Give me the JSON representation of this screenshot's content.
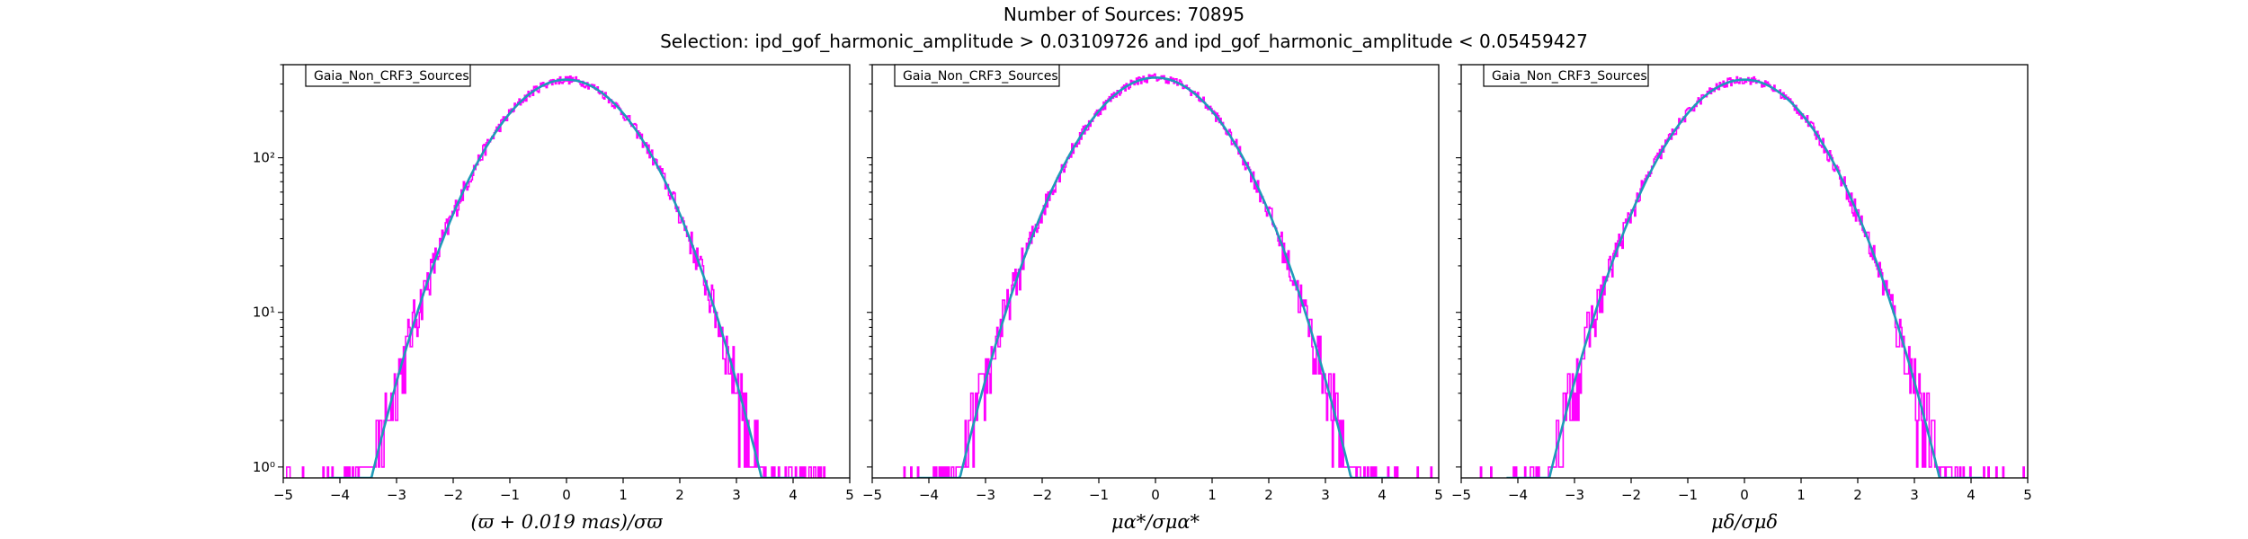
{
  "header": {
    "title": "Number of Sources: 70895",
    "subtitle": "Selection: ipd_gof_harmonic_amplitude > 0.03109726 and ipd_gof_harmonic_amplitude < 0.05459427"
  },
  "colors": {
    "histogram": "#ff00ff",
    "fit": "#1f9bb8"
  },
  "chart_data": [
    {
      "type": "line",
      "legend": "Gaia_Non_CRF3_Sources",
      "legend_placement": "top-left",
      "xlabel": "(ϖ + 0.019 mas)/σϖ",
      "ylabel": "",
      "xlim": [
        -5,
        5
      ],
      "ylim": [
        0.85,
        400
      ],
      "yscale": "log",
      "grid": false,
      "xticks": [
        "−5",
        "−4",
        "−3",
        "−2",
        "−1",
        "0",
        "1",
        "2",
        "3",
        "4",
        "5"
      ],
      "yticks": [
        "10⁰",
        "10¹",
        "10²"
      ],
      "peak": 320,
      "series": [
        {
          "kind": "histogram",
          "x": [
            -4.5,
            -4.0,
            -3.5,
            -3.0,
            -2.5,
            -2.0,
            -1.5,
            -1.0,
            -0.5,
            0.0,
            0.5,
            1.0,
            1.5,
            2.0,
            2.5,
            3.0,
            3.5,
            4.0,
            4.5
          ],
          "values": [
            1,
            1,
            2,
            4,
            17,
            43,
            105,
            195,
            283,
            320,
            283,
            195,
            105,
            43,
            17,
            4,
            2,
            1,
            1
          ]
        },
        {
          "kind": "gaussian-fit",
          "x": [
            -3.5,
            -3.0,
            -2.5,
            -2.0,
            -1.5,
            -1.0,
            -0.5,
            0.0,
            0.5,
            1.0,
            1.5,
            2.0,
            2.5,
            3.0,
            3.5
          ],
          "values": [
            0.7,
            3.6,
            14.0,
            43.3,
            104.1,
            194.1,
            282.4,
            320,
            282.4,
            194.1,
            104.1,
            43.3,
            14.0,
            3.6,
            0.7
          ]
        }
      ]
    },
    {
      "type": "line",
      "legend": "Gaia_Non_CRF3_Sources",
      "legend_placement": "top-left",
      "xlabel": "μα*/σμα*",
      "ylabel": "",
      "xlim": [
        -5,
        5
      ],
      "ylim": [
        0.85,
        400
      ],
      "yscale": "log",
      "grid": false,
      "xticks": [
        "−5",
        "−4",
        "−3",
        "−2",
        "−1",
        "0",
        "1",
        "2",
        "3",
        "4",
        "5"
      ],
      "yticks": [],
      "peak": 330,
      "series": [
        {
          "kind": "histogram",
          "x": [
            -4.5,
            -4.0,
            -3.5,
            -3.0,
            -2.5,
            -2.0,
            -1.5,
            -1.0,
            -0.5,
            0.0,
            0.5,
            1.0,
            1.5,
            2.0,
            2.5,
            3.0,
            3.5,
            4.0,
            4.5
          ],
          "values": [
            1,
            1,
            2,
            4,
            17,
            45,
            108,
            200,
            291,
            330,
            291,
            200,
            108,
            45,
            17,
            4,
            2,
            1,
            1
          ]
        },
        {
          "kind": "gaussian-fit",
          "x": [
            -3.5,
            -3.0,
            -2.5,
            -2.0,
            -1.5,
            -1.0,
            -0.5,
            0.0,
            0.5,
            1.0,
            1.5,
            2.0,
            2.5,
            3.0,
            3.5
          ],
          "values": [
            0.7,
            3.7,
            14.5,
            44.7,
            107.3,
            200.2,
            291.2,
            330,
            291.2,
            200.2,
            107.3,
            44.7,
            14.5,
            3.7,
            0.7
          ]
        }
      ]
    },
    {
      "type": "line",
      "legend": "Gaia_Non_CRF3_Sources",
      "legend_placement": "top-left",
      "xlabel": "μδ/σμδ",
      "ylabel": "",
      "xlim": [
        -5,
        5
      ],
      "ylim": [
        0.85,
        400
      ],
      "yscale": "log",
      "grid": false,
      "xticks": [
        "−5",
        "−4",
        "−3",
        "−2",
        "−1",
        "0",
        "1",
        "2",
        "3",
        "4",
        "5"
      ],
      "yticks": [],
      "peak": 320,
      "series": [
        {
          "kind": "histogram",
          "x": [
            -4.5,
            -4.0,
            -3.5,
            -3.0,
            -2.5,
            -2.0,
            -1.5,
            -1.0,
            -0.5,
            0.0,
            0.5,
            1.0,
            1.5,
            2.0,
            2.5,
            3.0,
            3.5,
            4.0,
            4.5
          ],
          "values": [
            1,
            1,
            2,
            5,
            17,
            43,
            105,
            195,
            283,
            320,
            283,
            195,
            105,
            43,
            17,
            4,
            2,
            1,
            1
          ]
        },
        {
          "kind": "gaussian-fit",
          "x": [
            -3.5,
            -3.0,
            -2.5,
            -2.0,
            -1.5,
            -1.0,
            -0.5,
            0.0,
            0.5,
            1.0,
            1.5,
            2.0,
            2.5,
            3.0,
            3.5
          ],
          "values": [
            0.7,
            3.6,
            14.0,
            43.3,
            104.1,
            194.1,
            282.4,
            320,
            282.4,
            194.1,
            104.1,
            43.3,
            14.0,
            3.6,
            0.7
          ]
        }
      ]
    }
  ]
}
